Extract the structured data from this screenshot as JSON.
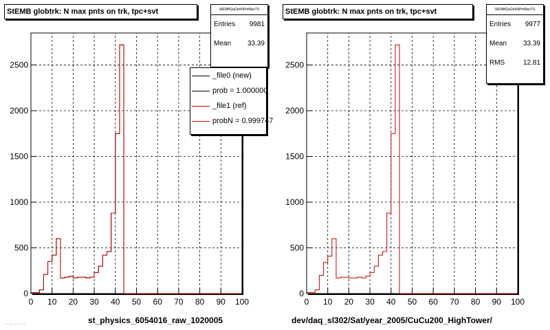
{
  "panels": [
    {
      "title": "StEMB globtrk: N max pnts on trk, tpc+svt",
      "stats": {
        "name": "StEMBQaGtrkNPntMaxTS",
        "rows": [
          {
            "label": "Entries",
            "value": "9981"
          },
          {
            "label": "Mean",
            "value": "33.39"
          }
        ]
      },
      "legend": {
        "entries": [
          {
            "label": "_file0 (new)",
            "color": "#000000"
          },
          {
            "label": "prob = 1.000000",
            "color": "#000000"
          },
          {
            "label": "_file1 (ref)",
            "color": "#cc0000"
          },
          {
            "label": "probN = 0.999747",
            "color": "#cc0000"
          }
        ]
      },
      "xlabel": "st_physics_6054016_raw_1020005"
    },
    {
      "title": "StEMB globtrk: N max pnts on trk, tpc+svt",
      "stats": {
        "name": "StEMBQaGtrkNPntMaxTS",
        "rows": [
          {
            "label": "Entries",
            "value": "9977"
          },
          {
            "label": "Mean",
            "value": "33.39"
          },
          {
            "label": "RMS",
            "value": "12.81"
          }
        ]
      },
      "xlabel": "dev/daq_sl302/Sat/year_2005/CuCu200_HighTower/"
    }
  ],
  "footer_text": "... ... ... ... ...",
  "chart_data": [
    {
      "type": "histogram",
      "title": "StEMB globtrk: N max pnts on trk, tpc+svt",
      "xlabel": "st_physics_6054016_raw_1020005",
      "ylabel": "",
      "xlim": [
        0,
        100
      ],
      "ylim": [
        0,
        2850
      ],
      "xticks": [
        0,
        10,
        20,
        30,
        40,
        50,
        60,
        70,
        80,
        90,
        100
      ],
      "yticks": [
        0,
        500,
        1000,
        1500,
        2000,
        2500
      ],
      "grid": true,
      "bin_width": 2,
      "bin_edges_start": 0,
      "series": [
        {
          "name": "_file0 (new)",
          "color": "#000000",
          "values": [
            10,
            10,
            40,
            210,
            350,
            420,
            600,
            170,
            180,
            190,
            170,
            180,
            180,
            170,
            180,
            230,
            300,
            420,
            460,
            880,
            1750,
            2720,
            0,
            0,
            0,
            0,
            0,
            0,
            0,
            0,
            0,
            0,
            0,
            0,
            0,
            0,
            0,
            0,
            0,
            0,
            0,
            0,
            0,
            0,
            0,
            0,
            0,
            0,
            0,
            0
          ]
        },
        {
          "name": "_file1 (ref)",
          "color": "#cc0000",
          "values": [
            10,
            10,
            40,
            210,
            350,
            420,
            600,
            170,
            180,
            190,
            170,
            180,
            180,
            170,
            180,
            230,
            300,
            420,
            460,
            880,
            1750,
            2720,
            0,
            0,
            0,
            0,
            0,
            0,
            0,
            0,
            0,
            0,
            0,
            0,
            0,
            0,
            0,
            0,
            0,
            0,
            0,
            0,
            0,
            0,
            0,
            0,
            0,
            0,
            0,
            0
          ]
        }
      ],
      "stats": {
        "entries": 9981,
        "mean": 33.39
      }
    },
    {
      "type": "histogram",
      "title": "StEMB globtrk: N max pnts on trk, tpc+svt",
      "xlabel": "dev/daq_sl302/Sat/year_2005/CuCu200_HighTower/",
      "ylabel": "",
      "xlim": [
        0,
        100
      ],
      "ylim": [
        0,
        2850
      ],
      "xticks": [
        0,
        10,
        20,
        30,
        40,
        50,
        60,
        70,
        80,
        90,
        100
      ],
      "yticks": [
        0,
        500,
        1000,
        1500,
        2000,
        2500
      ],
      "grid": true,
      "bin_width": 2,
      "bin_edges_start": 0,
      "series": [
        {
          "name": "",
          "color": "#cc0000",
          "values": [
            10,
            10,
            40,
            200,
            340,
            410,
            600,
            170,
            180,
            180,
            170,
            170,
            180,
            170,
            190,
            230,
            300,
            420,
            460,
            880,
            1750,
            2720,
            0,
            0,
            0,
            0,
            0,
            0,
            0,
            0,
            0,
            0,
            0,
            0,
            0,
            0,
            0,
            0,
            0,
            0,
            0,
            0,
            0,
            0,
            0,
            0,
            0,
            0,
            0,
            0
          ]
        }
      ],
      "stats": {
        "entries": 9977,
        "mean": 33.39,
        "rms": 12.81
      }
    }
  ]
}
